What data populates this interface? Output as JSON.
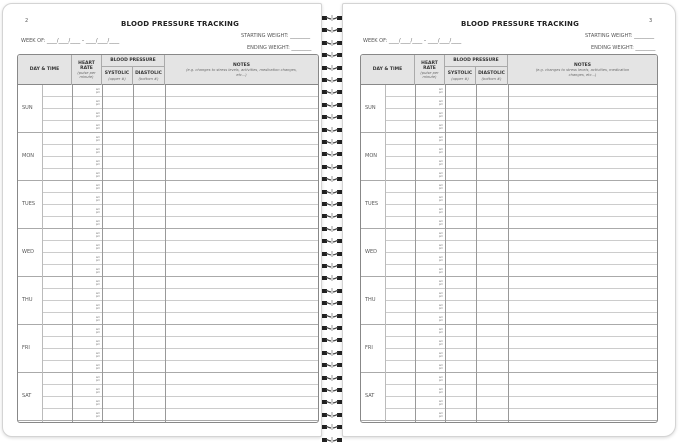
{
  "title": "BLOOD PRESSURE TRACKING",
  "week_of_label": "WEEK OF: ____/____/____ – ____/____/____",
  "starting_weight_label": "STARTING WEIGHT: ________",
  "ending_weight_label": "ENDING WEIGHT: ________",
  "pages": [
    {
      "number": "2"
    },
    {
      "number": "3"
    }
  ],
  "columns": {
    "day_time": "DAY & TIME",
    "heart_rate": "HEART RATE",
    "heart_rate_note": "(pulse per minute)",
    "blood_pressure": "BLOOD PRESSURE",
    "systolic": "SYSTOLIC",
    "systolic_note": "(upper #)",
    "diastolic": "DIASTOLIC",
    "diastolic_note": "(bottom #)",
    "notes": "NOTES",
    "notes_note": "(e.g. changes to stress levels, activities, medication changes, etc...)"
  },
  "days": [
    "SUN",
    "MON",
    "TUES",
    "WED",
    "THU",
    "FRI",
    "SAT"
  ],
  "rows_per_day": 4,
  "am": "am",
  "pm": "pm"
}
